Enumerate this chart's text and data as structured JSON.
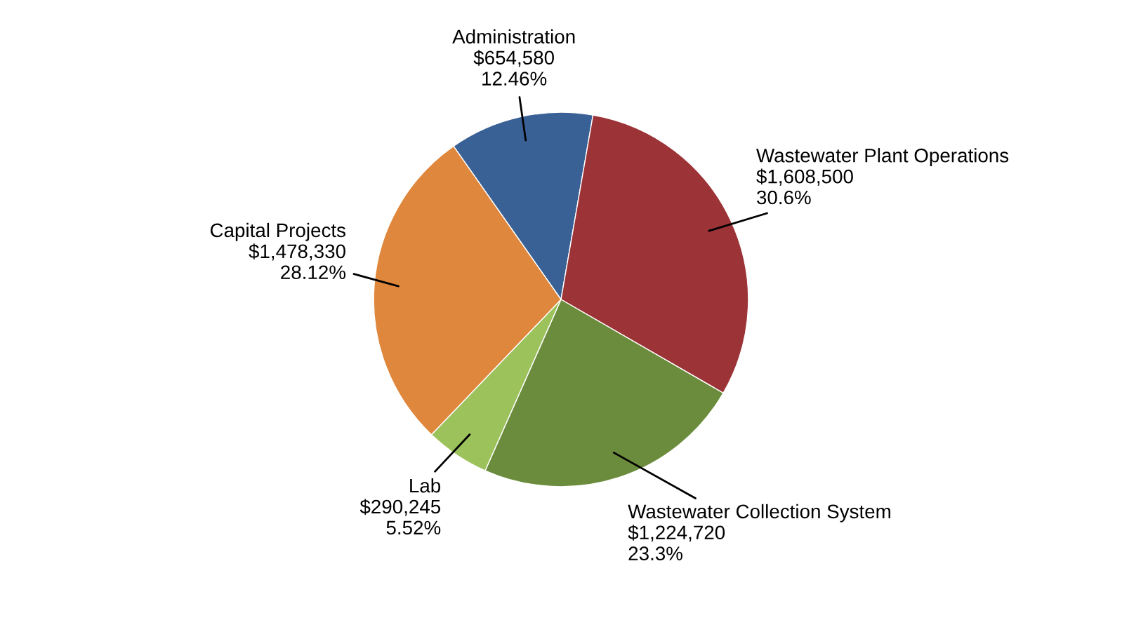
{
  "chart_data": {
    "type": "pie",
    "categories": [
      "Administration",
      "Wastewater Plant Operations",
      "Wastewater Collection System",
      "Lab",
      "Capital Projects"
    ],
    "values": [
      654580,
      1608500,
      1224720,
      290245,
      1478330
    ],
    "value_labels": [
      "$654,580\n12.46%",
      "$1,608,500\n30.6%",
      "$1,224,720\n23.3%",
      "$290,245\n5.52%",
      "$1,478,330\n28.12%"
    ],
    "colors": [
      "#3a6196",
      "#9b3337",
      "#6b8c3c",
      "#9cc25c",
      "#df873c"
    ]
  }
}
